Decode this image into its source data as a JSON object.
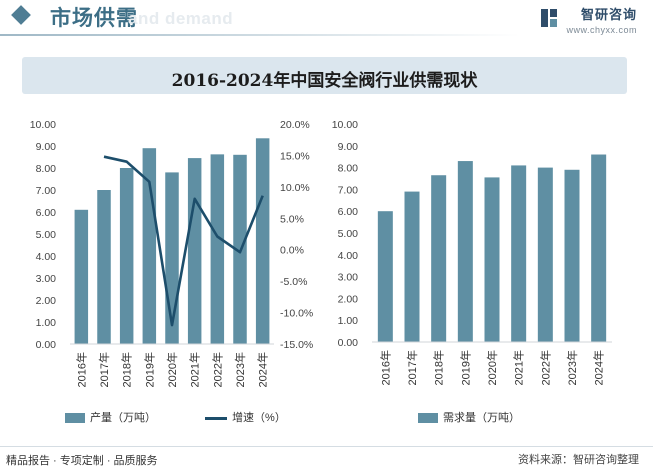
{
  "header": {
    "title": "市场供需",
    "watermark_en": "and demand",
    "brand_name": "智研咨询",
    "brand_url": "www.chyxx.com"
  },
  "chart_title": "2016-2024年中国安全阀行业供需现状",
  "colors": {
    "bar": "#5f8fa3",
    "line": "#1d4e6b",
    "title_bg": "#dbe6ee",
    "accent": "#3c6e86"
  },
  "chart_data": [
    {
      "type": "bar",
      "categories": [
        "2016年",
        "2017年",
        "2018年",
        "2019年",
        "2020年",
        "2021年",
        "2022年",
        "2023年",
        "2024年"
      ],
      "series": [
        {
          "name": "产量（万吨）",
          "type": "bar",
          "axis": "left",
          "values": [
            6.1,
            7.0,
            8.0,
            8.9,
            7.8,
            8.45,
            8.62,
            8.6,
            9.35
          ]
        },
        {
          "name": "增速（%）",
          "type": "line",
          "axis": "right",
          "values": [
            null,
            14.8,
            14.0,
            10.8,
            -12.0,
            8.1,
            2.1,
            -0.4,
            8.6
          ]
        }
      ],
      "ylim": [
        0,
        10
      ],
      "y_ticks": [
        "0.00",
        "1.00",
        "2.00",
        "3.00",
        "4.00",
        "5.00",
        "6.00",
        "7.00",
        "8.00",
        "9.00",
        "10.00"
      ],
      "y2lim": [
        -15,
        20
      ],
      "y2_ticks": [
        "-15.0%",
        "-10.0%",
        "-5.0%",
        "0.0%",
        "5.0%",
        "10.0%",
        "15.0%",
        "20.0%"
      ],
      "grid": false,
      "legend": "bottom"
    },
    {
      "type": "bar",
      "categories": [
        "2016年",
        "2017年",
        "2018年",
        "2019年",
        "2020年",
        "2021年",
        "2022年",
        "2023年",
        "2024年"
      ],
      "series": [
        {
          "name": "需求量（万吨）",
          "values": [
            6.0,
            6.9,
            7.65,
            8.3,
            7.55,
            8.1,
            8.0,
            7.9,
            8.6
          ]
        }
      ],
      "ylim": [
        0,
        10
      ],
      "y_ticks": [
        "0.00",
        "1.00",
        "2.00",
        "3.00",
        "4.00",
        "5.00",
        "6.00",
        "7.00",
        "8.00",
        "9.00",
        "10.00"
      ],
      "grid": false,
      "legend": "bottom"
    }
  ],
  "footer": {
    "slogan": "精品报告 · 专项定制 · 品质服务",
    "source": "资料来源：智研咨询整理"
  }
}
